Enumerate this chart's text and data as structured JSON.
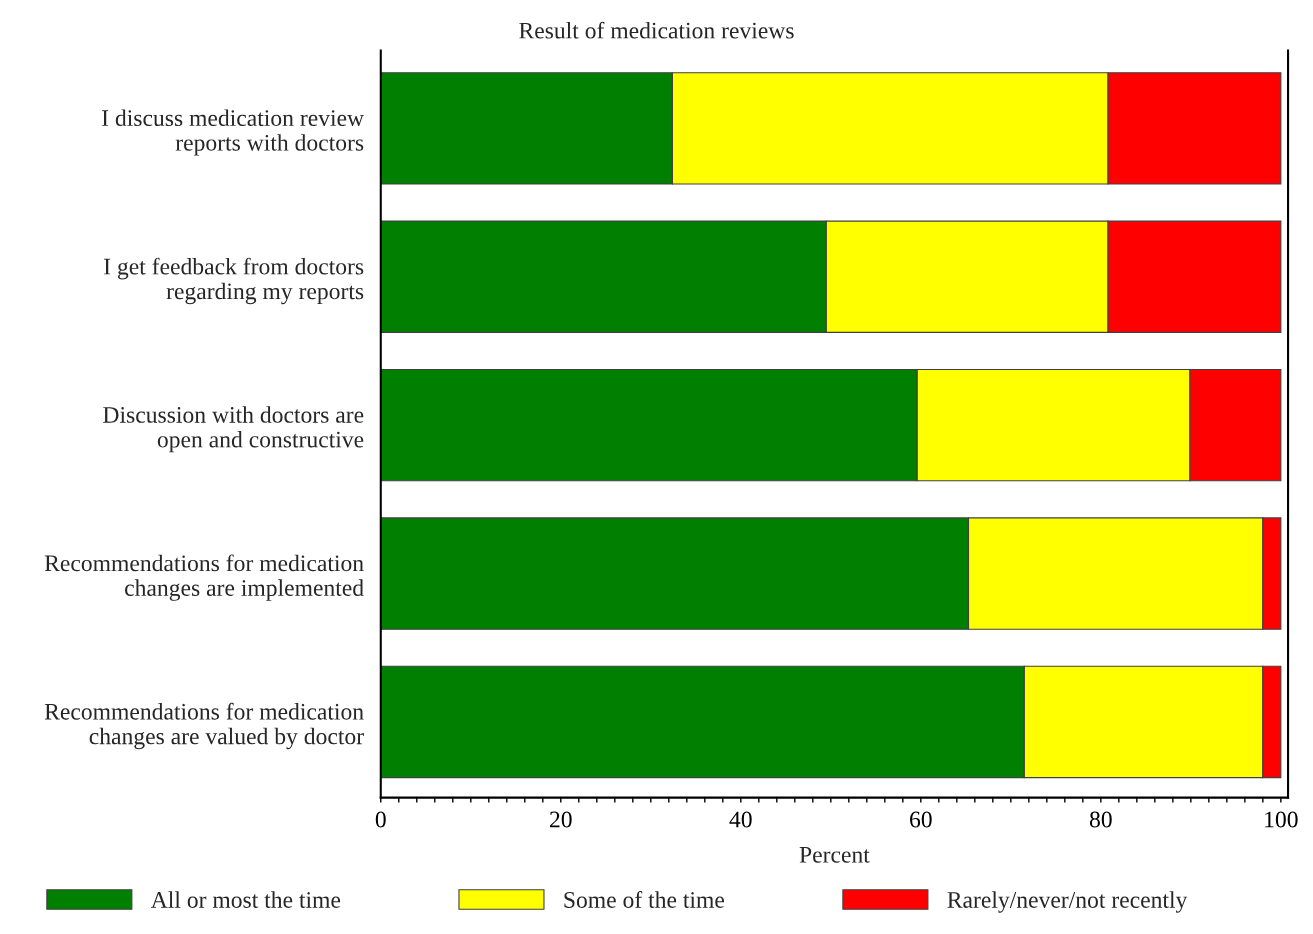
{
  "chart_data": {
    "type": "bar",
    "orientation": "horizontal",
    "stacked": true,
    "title": "Result of medication reviews",
    "xlabel": "Percent",
    "categories": [
      "I discuss medication review\nreports with doctors",
      "I get feedback from doctors\nregarding my reports",
      "Discussion with doctors are\nopen and constructive",
      "Recommendations for medication\nchanges are implemented",
      "Recommendations for medication\nchanges are valued by doctor"
    ],
    "series": [
      {
        "name": "All or most the time",
        "color": "#007f00",
        "values": [
          32.4,
          49.5,
          59.6,
          65.3,
          71.5
        ]
      },
      {
        "name": "Some of the time",
        "color": "#ffff00",
        "values": [
          48.4,
          31.3,
          30.3,
          32.7,
          26.5
        ]
      },
      {
        "name": "Rarely/never/not recently",
        "color": "#ff0000",
        "values": [
          19.2,
          19.2,
          10.1,
          2.0,
          2.0
        ]
      }
    ],
    "xlim": [
      0,
      100.8
    ],
    "xticks": [
      0,
      {
        "value": 2,
        "label": null
      },
      {
        "value": 4,
        "label": null
      },
      {
        "value": 6,
        "label": null
      },
      {
        "value": 8,
        "label": null
      },
      {
        "value": 10,
        "label": null
      },
      {
        "value": 12,
        "label": null
      },
      {
        "value": 14,
        "label": null
      },
      {
        "value": 16,
        "label": null
      },
      {
        "value": 18,
        "label": null
      },
      20,
      {
        "value": 22,
        "label": null
      },
      {
        "value": 24,
        "label": null
      },
      {
        "value": 26,
        "label": null
      },
      {
        "value": 28,
        "label": null
      },
      {
        "value": 30,
        "label": null
      },
      {
        "value": 32,
        "label": null
      },
      {
        "value": 34,
        "label": null
      },
      {
        "value": 36,
        "label": null
      },
      {
        "value": 38,
        "label": null
      },
      40,
      {
        "value": 42,
        "label": null
      },
      {
        "value": 44,
        "label": null
      },
      {
        "value": 46,
        "label": null
      },
      {
        "value": 48,
        "label": null
      },
      {
        "value": 50,
        "label": null
      },
      {
        "value": 52,
        "label": null
      },
      {
        "value": 54,
        "label": null
      },
      {
        "value": 56,
        "label": null
      },
      {
        "value": 58,
        "label": null
      },
      60,
      {
        "value": 62,
        "label": null
      },
      {
        "value": 64,
        "label": null
      },
      {
        "value": 66,
        "label": null
      },
      {
        "value": 68,
        "label": null
      },
      {
        "value": 70,
        "label": null
      },
      {
        "value": 72,
        "label": null
      },
      {
        "value": 74,
        "label": null
      },
      {
        "value": 76,
        "label": null
      },
      {
        "value": 78,
        "label": null
      },
      80,
      {
        "value": 82,
        "label": null
      },
      {
        "value": 84,
        "label": null
      },
      {
        "value": 86,
        "label": null
      },
      {
        "value": 88,
        "label": null
      },
      {
        "value": 90,
        "label": null
      },
      {
        "value": 92,
        "label": null
      },
      {
        "value": 94,
        "label": null
      },
      {
        "value": 96,
        "label": null
      },
      {
        "value": 98,
        "label": null
      },
      100
    ],
    "legend": "bottom",
    "grid": false
  }
}
